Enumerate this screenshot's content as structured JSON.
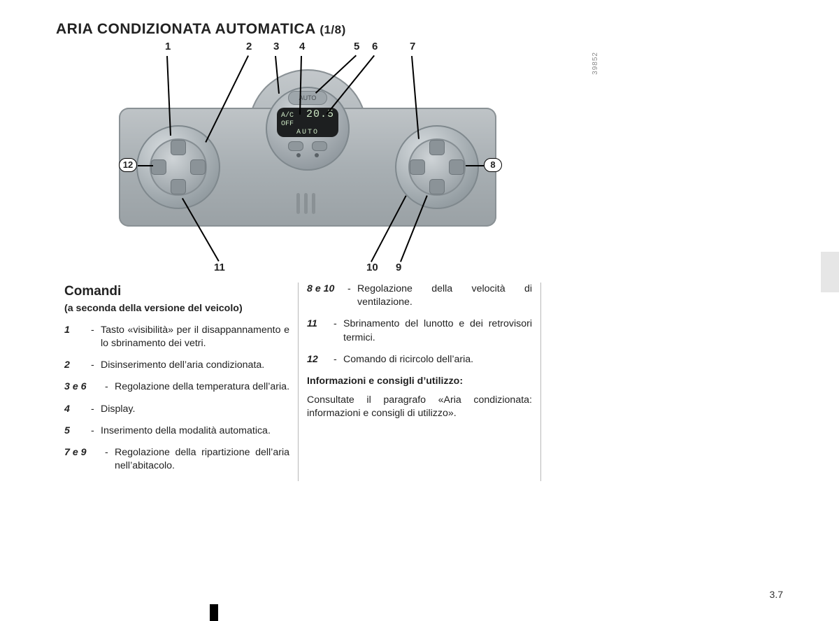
{
  "title": {
    "main": "ARIA CONDIZIONATA AUTOMATICA",
    "sub": "(1/8)"
  },
  "diagram": {
    "photo_id": "39852",
    "lcd": {
      "left_small": "A/C OFF",
      "temp": "20.5",
      "bottom": "AUTO"
    },
    "auto_button": "AUTO",
    "callouts_top": [
      "1",
      "2",
      "3",
      "4",
      "5",
      "6",
      "7"
    ],
    "callouts_right": "8",
    "callouts_left": "12",
    "callouts_bottom": [
      "11",
      "10",
      "9"
    ],
    "callouts_top_x": [
      100,
      216,
      255,
      292,
      370,
      396,
      450
    ],
    "callouts_bottom_x": [
      172,
      390,
      432
    ]
  },
  "columns": {
    "left": {
      "heading": "Comandi",
      "subheading": "(a seconda della versione del veicolo)",
      "items": [
        {
          "ref": "1",
          "text": "Tasto «visibilità» per il disappannamento e lo sbrinamento dei vetri."
        },
        {
          "ref": "2",
          "text": "Disinserimento dell’aria condizionata."
        },
        {
          "ref": "3 e 6",
          "text": "Regolazione della temperatura dell’aria."
        },
        {
          "ref": "4",
          "text": "Display."
        },
        {
          "ref": "5",
          "text": "Inserimento della modalità automatica."
        },
        {
          "ref": "7 e 9",
          "text": "Regolazione della ripartizione dell’aria nell’abitacolo."
        }
      ]
    },
    "mid": {
      "items": [
        {
          "ref": "8 e 10",
          "text": "Regolazione della velocità di ventilazione."
        },
        {
          "ref": "11",
          "text": "Sbrinamento del lunotto e dei retrovisori termici."
        },
        {
          "ref": "12",
          "text": "Comando di ricircolo dell’aria."
        }
      ],
      "info_heading": "Informazioni e consigli d’utilizzo:",
      "info_text": "Consultate il paragrafo «Aria condizionata: informazioni e consigli di utilizzo»."
    }
  },
  "page_number": "3.7"
}
